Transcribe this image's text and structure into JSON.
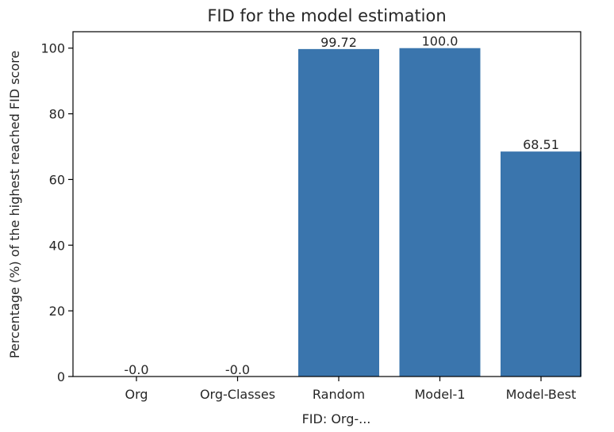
{
  "chart_data": {
    "type": "bar",
    "title": "FID for the model estimation",
    "xlabel": "FID: Org-...",
    "ylabel": "Percentage (%) of the highest reached FID score",
    "categories": [
      "Org",
      "Org-Classes",
      "Random",
      "Model-1",
      "Model-Best"
    ],
    "values": [
      0.0,
      0.0,
      99.72,
      100.0,
      68.51
    ],
    "data_labels": [
      "-0.0",
      "-0.0",
      "99.72",
      "100.0",
      "68.51"
    ],
    "ylim": [
      0,
      105
    ],
    "yticks": [
      0,
      20,
      40,
      60,
      80,
      100
    ],
    "grid": false,
    "bar_color": "#3a75ad"
  }
}
